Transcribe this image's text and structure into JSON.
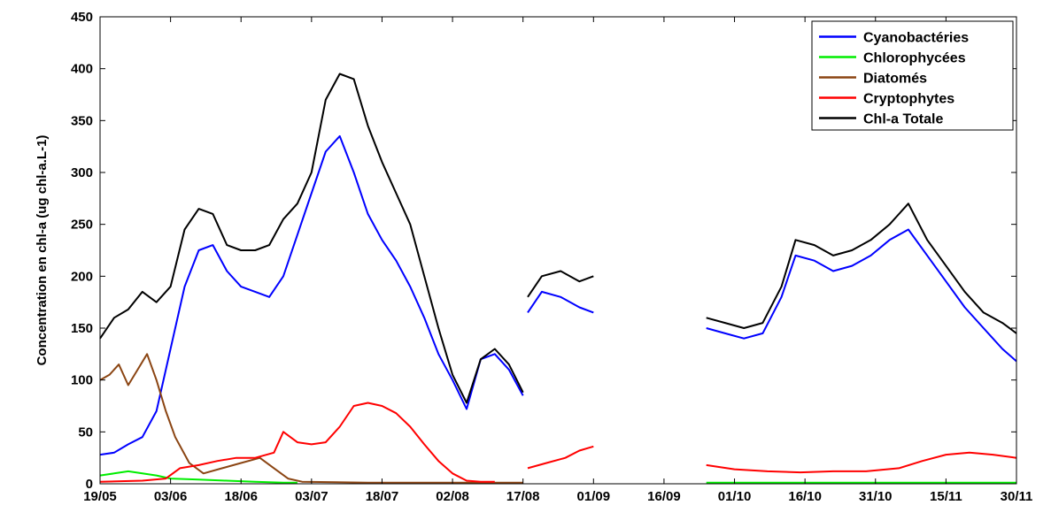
{
  "chart_data": {
    "type": "line",
    "title": "",
    "xlabel": "",
    "ylabel": "Concentration en chl-a (ug chl-a.L-1)",
    "x_start": "19/05",
    "x_end": "30/11",
    "xticks": [
      "19/05",
      "03/06",
      "18/06",
      "03/07",
      "18/07",
      "02/08",
      "17/08",
      "01/09",
      "16/09",
      "01/10",
      "16/10",
      "31/10",
      "15/11",
      "30/11"
    ],
    "ylim": [
      0,
      450
    ],
    "yticks": [
      "0",
      "50",
      "100",
      "150",
      "200",
      "250",
      "300",
      "350",
      "400",
      "450"
    ],
    "grid": false,
    "legend_position": "top-right",
    "series": [
      {
        "name": "Cyanobactéries",
        "color": "#0000ff",
        "segments": [
          [
            [
              "19/05",
              28
            ],
            [
              "22/05",
              30
            ],
            [
              "25/05",
              38
            ],
            [
              "28/05",
              45
            ],
            [
              "31/05",
              70
            ],
            [
              "03/06",
              130
            ],
            [
              "06/06",
              190
            ],
            [
              "09/06",
              225
            ],
            [
              "12/06",
              230
            ],
            [
              "15/06",
              205
            ],
            [
              "18/06",
              190
            ],
            [
              "21/06",
              185
            ],
            [
              "24/06",
              180
            ],
            [
              "27/06",
              200
            ],
            [
              "30/06",
              240
            ],
            [
              "03/07",
              280
            ],
            [
              "06/07",
              320
            ],
            [
              "09/07",
              335
            ],
            [
              "12/07",
              300
            ],
            [
              "15/07",
              260
            ],
            [
              "18/07",
              235
            ],
            [
              "21/07",
              215
            ],
            [
              "24/07",
              190
            ],
            [
              "27/07",
              160
            ],
            [
              "30/07",
              125
            ],
            [
              "02/08",
              100
            ],
            [
              "05/08",
              72
            ],
            [
              "08/08",
              120
            ],
            [
              "11/08",
              125
            ],
            [
              "14/08",
              110
            ],
            [
              "17/08",
              85
            ]
          ],
          [
            [
              "18/08",
              165
            ],
            [
              "21/08",
              185
            ],
            [
              "25/08",
              180
            ],
            [
              "29/08",
              170
            ],
            [
              "01/09",
              165
            ]
          ],
          [
            [
              "25/09",
              150
            ],
            [
              "29/09",
              145
            ],
            [
              "03/10",
              140
            ],
            [
              "07/10",
              145
            ],
            [
              "11/10",
              180
            ],
            [
              "14/10",
              220
            ],
            [
              "18/10",
              215
            ],
            [
              "22/10",
              205
            ],
            [
              "26/10",
              210
            ],
            [
              "30/10",
              220
            ],
            [
              "03/11",
              235
            ],
            [
              "07/11",
              245
            ],
            [
              "11/11",
              220
            ],
            [
              "15/11",
              195
            ],
            [
              "19/11",
              170
            ],
            [
              "23/11",
              150
            ],
            [
              "27/11",
              130
            ],
            [
              "30/11",
              118
            ]
          ]
        ]
      },
      {
        "name": "Chlorophycées",
        "color": "#00ee00",
        "segments": [
          [
            [
              "19/05",
              8
            ],
            [
              "22/05",
              10
            ],
            [
              "25/05",
              12
            ],
            [
              "28/05",
              10
            ],
            [
              "31/05",
              8
            ],
            [
              "03/06",
              5
            ],
            [
              "09/06",
              4
            ],
            [
              "15/06",
              3
            ],
            [
              "21/06",
              2
            ],
            [
              "27/06",
              1
            ],
            [
              "30/06",
              1
            ]
          ],
          [
            [
              "25/09",
              1
            ],
            [
              "30/11",
              1
            ]
          ]
        ]
      },
      {
        "name": "Diatomés",
        "color": "#8b4513",
        "segments": [
          [
            [
              "19/05",
              100
            ],
            [
              "21/05",
              105
            ],
            [
              "23/05",
              115
            ],
            [
              "25/05",
              95
            ],
            [
              "27/05",
              110
            ],
            [
              "29/05",
              125
            ],
            [
              "31/05",
              100
            ],
            [
              "02/06",
              70
            ],
            [
              "04/06",
              45
            ],
            [
              "07/06",
              20
            ],
            [
              "10/06",
              10
            ],
            [
              "14/06",
              15
            ],
            [
              "18/06",
              20
            ],
            [
              "22/06",
              25
            ],
            [
              "25/06",
              15
            ],
            [
              "28/06",
              5
            ],
            [
              "01/07",
              2
            ],
            [
              "15/07",
              1
            ],
            [
              "17/08",
              1
            ]
          ]
        ]
      },
      {
        "name": "Cryptophytes",
        "color": "#ff0000",
        "segments": [
          [
            [
              "19/05",
              2
            ],
            [
              "28/05",
              3
            ],
            [
              "02/06",
              5
            ],
            [
              "05/06",
              15
            ],
            [
              "09/06",
              18
            ],
            [
              "13/06",
              22
            ],
            [
              "17/06",
              25
            ],
            [
              "21/06",
              25
            ],
            [
              "25/06",
              30
            ],
            [
              "27/06",
              50
            ],
            [
              "30/06",
              40
            ],
            [
              "03/07",
              38
            ],
            [
              "06/07",
              40
            ],
            [
              "09/07",
              55
            ],
            [
              "12/07",
              75
            ],
            [
              "15/07",
              78
            ],
            [
              "18/07",
              75
            ],
            [
              "21/07",
              68
            ],
            [
              "24/07",
              55
            ],
            [
              "27/07",
              38
            ],
            [
              "30/07",
              22
            ],
            [
              "02/08",
              10
            ],
            [
              "05/08",
              3
            ],
            [
              "08/08",
              2
            ],
            [
              "11/08",
              2
            ]
          ],
          [
            [
              "18/08",
              15
            ],
            [
              "22/08",
              20
            ],
            [
              "26/08",
              25
            ],
            [
              "29/08",
              32
            ],
            [
              "01/09",
              36
            ]
          ],
          [
            [
              "25/09",
              18
            ],
            [
              "01/10",
              14
            ],
            [
              "08/10",
              12
            ],
            [
              "15/10",
              11
            ],
            [
              "22/10",
              12
            ],
            [
              "29/10",
              12
            ],
            [
              "05/11",
              15
            ],
            [
              "10/11",
              22
            ],
            [
              "15/11",
              28
            ],
            [
              "20/11",
              30
            ],
            [
              "25/11",
              28
            ],
            [
              "30/11",
              25
            ]
          ]
        ]
      },
      {
        "name": "Chl-a Totale",
        "color": "#000000",
        "segments": [
          [
            [
              "19/05",
              140
            ],
            [
              "22/05",
              160
            ],
            [
              "25/05",
              168
            ],
            [
              "28/05",
              185
            ],
            [
              "31/05",
              175
            ],
            [
              "03/06",
              190
            ],
            [
              "06/06",
              245
            ],
            [
              "09/06",
              265
            ],
            [
              "12/06",
              260
            ],
            [
              "15/06",
              230
            ],
            [
              "18/06",
              225
            ],
            [
              "21/06",
              225
            ],
            [
              "24/06",
              230
            ],
            [
              "27/06",
              255
            ],
            [
              "30/06",
              270
            ],
            [
              "03/07",
              300
            ],
            [
              "06/07",
              370
            ],
            [
              "09/07",
              395
            ],
            [
              "12/07",
              390
            ],
            [
              "15/07",
              345
            ],
            [
              "18/07",
              310
            ],
            [
              "21/07",
              280
            ],
            [
              "24/07",
              250
            ],
            [
              "27/07",
              200
            ],
            [
              "30/07",
              150
            ],
            [
              "02/08",
              105
            ],
            [
              "05/08",
              78
            ],
            [
              "08/08",
              120
            ],
            [
              "11/08",
              130
            ],
            [
              "14/08",
              115
            ],
            [
              "17/08",
              88
            ]
          ],
          [
            [
              "18/08",
              180
            ],
            [
              "21/08",
              200
            ],
            [
              "25/08",
              205
            ],
            [
              "29/08",
              195
            ],
            [
              "01/09",
              200
            ]
          ],
          [
            [
              "25/09",
              160
            ],
            [
              "29/09",
              155
            ],
            [
              "03/10",
              150
            ],
            [
              "07/10",
              155
            ],
            [
              "11/10",
              190
            ],
            [
              "14/10",
              235
            ],
            [
              "18/10",
              230
            ],
            [
              "22/10",
              220
            ],
            [
              "26/10",
              225
            ],
            [
              "30/10",
              235
            ],
            [
              "03/11",
              250
            ],
            [
              "07/11",
              270
            ],
            [
              "11/11",
              235
            ],
            [
              "15/11",
              210
            ],
            [
              "19/11",
              185
            ],
            [
              "23/11",
              165
            ],
            [
              "27/11",
              155
            ],
            [
              "30/11",
              145
            ]
          ]
        ]
      }
    ]
  }
}
